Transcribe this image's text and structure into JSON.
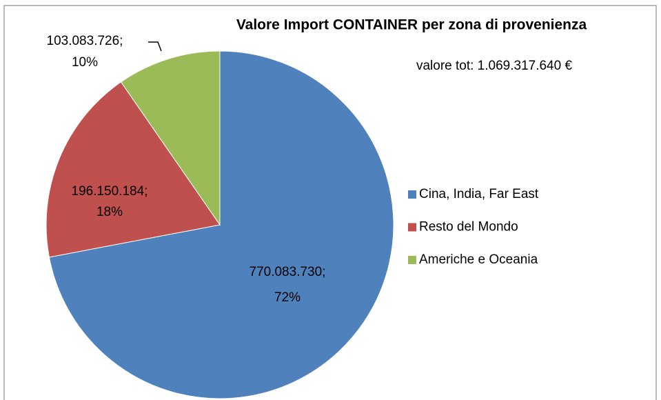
{
  "chart_data": {
    "type": "pie",
    "title": "Valore Import  CONTAINER per zona di provenienza",
    "subtitle": "valore tot: 1.069.317.640 €",
    "categories": [
      "Cina, India, Far East",
      "Resto del Mondo",
      "Americhe e Oceania"
    ],
    "values": [
      770083730,
      196150184,
      103083726
    ],
    "value_labels": [
      "770.083.730;",
      "196.150.184;",
      "103.083.726;"
    ],
    "percent_labels": [
      "72%",
      "18%",
      "10%"
    ],
    "colors": [
      "#4f81bd",
      "#c0504d",
      "#9bbb59"
    ],
    "legend": "right"
  }
}
